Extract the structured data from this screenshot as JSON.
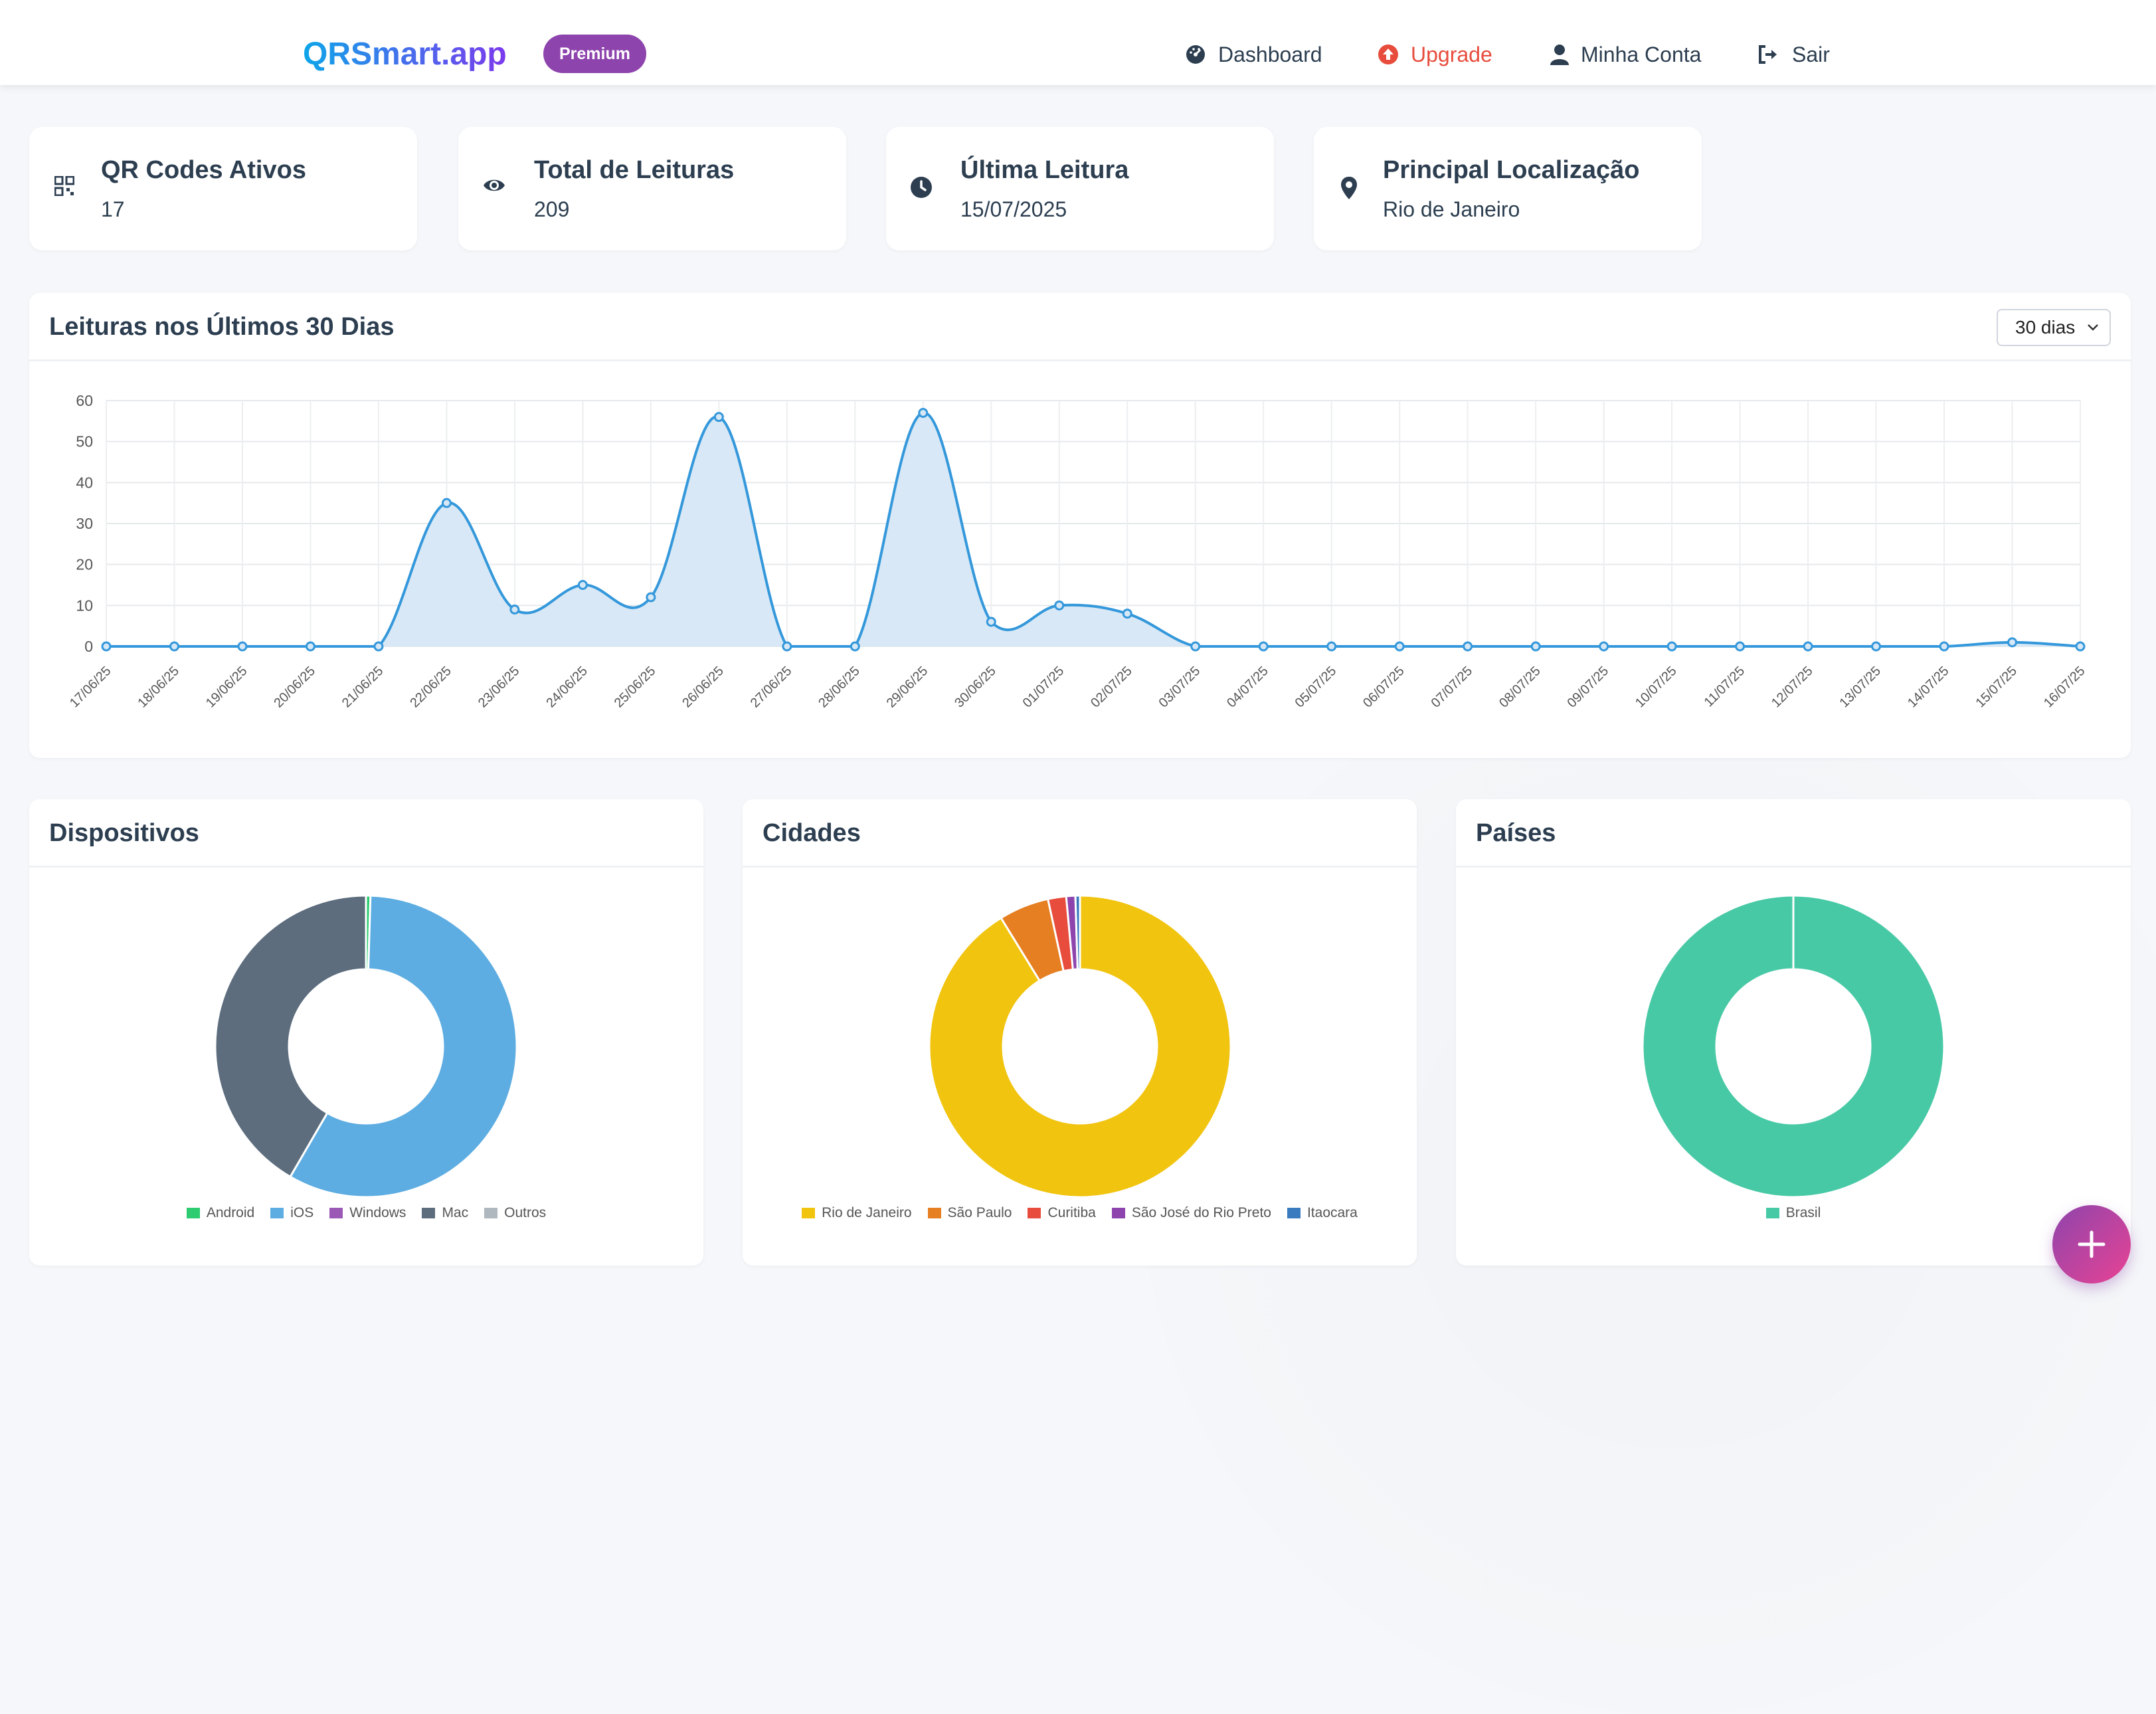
{
  "header": {
    "logo": "QRSmart.app",
    "badge": "Premium",
    "nav": [
      {
        "label": "Dashboard",
        "icon": "dashboard-gauge-icon"
      },
      {
        "label": "Upgrade",
        "icon": "upgrade-arrow-icon",
        "color": "#e74c3c"
      },
      {
        "label": "Minha Conta",
        "icon": "user-icon"
      },
      {
        "label": "Sair",
        "icon": "sign-out-icon"
      }
    ]
  },
  "stats": [
    {
      "title": "QR Codes Ativos",
      "value": "17",
      "icon": "qrcode-icon"
    },
    {
      "title": "Total de Leituras",
      "value": "209",
      "icon": "eye-icon"
    },
    {
      "title": "Última Leitura",
      "value": "15/07/2025",
      "icon": "clock-icon"
    },
    {
      "title": "Principal Localização",
      "value": "Rio de Janeiro",
      "icon": "map-pin-icon"
    }
  ],
  "reads_panel": {
    "title": "Leituras nos Últimos 30 Dias",
    "range": "30 dias"
  },
  "devices_panel": {
    "title": "Dispositivos"
  },
  "cities_panel": {
    "title": "Cidades"
  },
  "countries_panel": {
    "title": "Países"
  },
  "colors": {
    "line": "#3498db",
    "fill": "#d6e7f6",
    "fab": "#8e44ad"
  },
  "chart_data": [
    {
      "type": "line",
      "x": [
        "17/06/25",
        "18/06/25",
        "19/06/25",
        "20/06/25",
        "21/06/25",
        "22/06/25",
        "23/06/25",
        "24/06/25",
        "25/06/25",
        "26/06/25",
        "27/06/25",
        "28/06/25",
        "29/06/25",
        "30/06/25",
        "01/07/25",
        "02/07/25",
        "03/07/25",
        "04/07/25",
        "05/07/25",
        "06/07/25",
        "07/07/25",
        "08/07/25",
        "09/07/25",
        "10/07/25",
        "11/07/25",
        "12/07/25",
        "13/07/25",
        "14/07/25",
        "15/07/25",
        "16/07/25"
      ],
      "values": [
        0,
        0,
        0,
        0,
        0,
        35,
        9,
        15,
        12,
        56,
        0,
        0,
        57,
        6,
        10,
        8,
        0,
        0,
        0,
        0,
        0,
        0,
        0,
        0,
        0,
        0,
        0,
        0,
        1,
        0
      ],
      "ylim": [
        0,
        60
      ],
      "yticks": [
        0,
        10,
        20,
        30,
        40,
        50,
        60
      ],
      "grid": true,
      "fill": true
    },
    {
      "type": "pie",
      "variant": "doughnut",
      "labels": [
        "Android",
        "iOS",
        "Windows",
        "Mac",
        "Outros"
      ],
      "values": [
        1,
        121,
        0,
        87,
        0
      ],
      "colors": [
        "#2ecc71",
        "#5dade2",
        "#9b59b6",
        "#5d6d7e",
        "#b0b8bf"
      ],
      "legend": "bottom"
    },
    {
      "type": "pie",
      "variant": "doughnut",
      "labels": [
        "Rio de Janeiro",
        "São Paulo",
        "Curitiba",
        "São José do Rio Preto",
        "Itaocara"
      ],
      "values": [
        187,
        11,
        4,
        2,
        1
      ],
      "colors": [
        "#f1c40f",
        "#e67e22",
        "#e74c3c",
        "#8e44ad",
        "#3a7bbf"
      ],
      "legend": "bottom"
    },
    {
      "type": "pie",
      "variant": "doughnut",
      "labels": [
        "Brasil"
      ],
      "values": [
        209
      ],
      "colors": [
        "#48c9a5"
      ],
      "legend": "bottom"
    }
  ]
}
